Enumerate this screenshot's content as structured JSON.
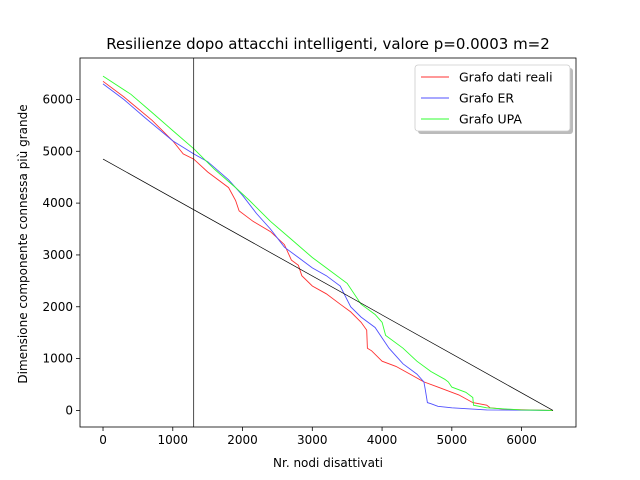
{
  "chart_data": {
    "type": "line",
    "title": "Resilienze dopo attacchi intelligenti, valore p=0.0003 m=2",
    "xlabel": "Nr. nodi disattivati",
    "ylabel": "Dimensione componente connessa più grande",
    "xlim": [
      -330,
      6780
    ],
    "ylim": [
      -320,
      6800
    ],
    "xticks": [
      0,
      1000,
      2000,
      3000,
      4000,
      5000,
      6000
    ],
    "yticks": [
      0,
      1000,
      2000,
      3000,
      4000,
      5000,
      6000
    ],
    "grid": false,
    "legend_position": "top-right",
    "series": [
      {
        "name": "Grafo dati reali",
        "color": "#ff3030",
        "points": [
          [
            0,
            6350
          ],
          [
            300,
            6050
          ],
          [
            700,
            5600
          ],
          [
            1000,
            5200
          ],
          [
            1150,
            4950
          ],
          [
            1300,
            4850
          ],
          [
            1500,
            4600
          ],
          [
            1800,
            4300
          ],
          [
            1900,
            4050
          ],
          [
            1950,
            3850
          ],
          [
            2150,
            3650
          ],
          [
            2400,
            3450
          ],
          [
            2600,
            3200
          ],
          [
            2700,
            2900
          ],
          [
            2800,
            2800
          ],
          [
            2850,
            2600
          ],
          [
            3000,
            2400
          ],
          [
            3200,
            2250
          ],
          [
            3400,
            2050
          ],
          [
            3550,
            1900
          ],
          [
            3700,
            1700
          ],
          [
            3780,
            1550
          ],
          [
            3790,
            1200
          ],
          [
            3850,
            1150
          ],
          [
            4000,
            950
          ],
          [
            4200,
            850
          ],
          [
            4400,
            700
          ],
          [
            4600,
            550
          ],
          [
            4800,
            450
          ],
          [
            5000,
            350
          ],
          [
            5100,
            300
          ],
          [
            5300,
            150
          ],
          [
            5500,
            100
          ],
          [
            5550,
            50
          ],
          [
            5800,
            20
          ],
          [
            6450,
            0
          ]
        ]
      },
      {
        "name": "Grafo ER",
        "color": "#5050ff",
        "points": [
          [
            0,
            6300
          ],
          [
            300,
            6000
          ],
          [
            600,
            5650
          ],
          [
            1000,
            5200
          ],
          [
            1300,
            4950
          ],
          [
            1500,
            4800
          ],
          [
            1800,
            4450
          ],
          [
            2000,
            4150
          ],
          [
            2200,
            3800
          ],
          [
            2400,
            3500
          ],
          [
            2600,
            3150
          ],
          [
            2800,
            2950
          ],
          [
            3000,
            2750
          ],
          [
            3200,
            2600
          ],
          [
            3400,
            2400
          ],
          [
            3550,
            2000
          ],
          [
            3700,
            1800
          ],
          [
            3900,
            1600
          ],
          [
            4100,
            1200
          ],
          [
            4300,
            900
          ],
          [
            4500,
            700
          ],
          [
            4600,
            550
          ],
          [
            4620,
            400
          ],
          [
            4650,
            150
          ],
          [
            4700,
            130
          ],
          [
            4800,
            80
          ],
          [
            5000,
            50
          ],
          [
            5500,
            10
          ],
          [
            6400,
            0
          ]
        ]
      },
      {
        "name": "Grafo UPA",
        "color": "#30ff30",
        "points": [
          [
            0,
            6450
          ],
          [
            400,
            6100
          ],
          [
            700,
            5750
          ],
          [
            1000,
            5400
          ],
          [
            1300,
            5050
          ],
          [
            1600,
            4650
          ],
          [
            1900,
            4300
          ],
          [
            2100,
            4050
          ],
          [
            2400,
            3650
          ],
          [
            2700,
            3300
          ],
          [
            3000,
            2950
          ],
          [
            3200,
            2750
          ],
          [
            3500,
            2450
          ],
          [
            3700,
            2050
          ],
          [
            3900,
            1850
          ],
          [
            4000,
            1700
          ],
          [
            4050,
            1450
          ],
          [
            4300,
            1200
          ],
          [
            4500,
            950
          ],
          [
            4700,
            750
          ],
          [
            4900,
            600
          ],
          [
            4950,
            550
          ],
          [
            5000,
            450
          ],
          [
            5200,
            350
          ],
          [
            5300,
            250
          ],
          [
            5310,
            100
          ],
          [
            5500,
            50
          ],
          [
            6000,
            10
          ],
          [
            6450,
            0
          ]
        ]
      }
    ],
    "reference_lines": [
      {
        "kind": "diagonal",
        "color": "#000000",
        "points": [
          [
            0,
            4850
          ],
          [
            6450,
            0
          ]
        ]
      },
      {
        "kind": "vertical",
        "color": "#000000",
        "x": 1300
      }
    ]
  }
}
